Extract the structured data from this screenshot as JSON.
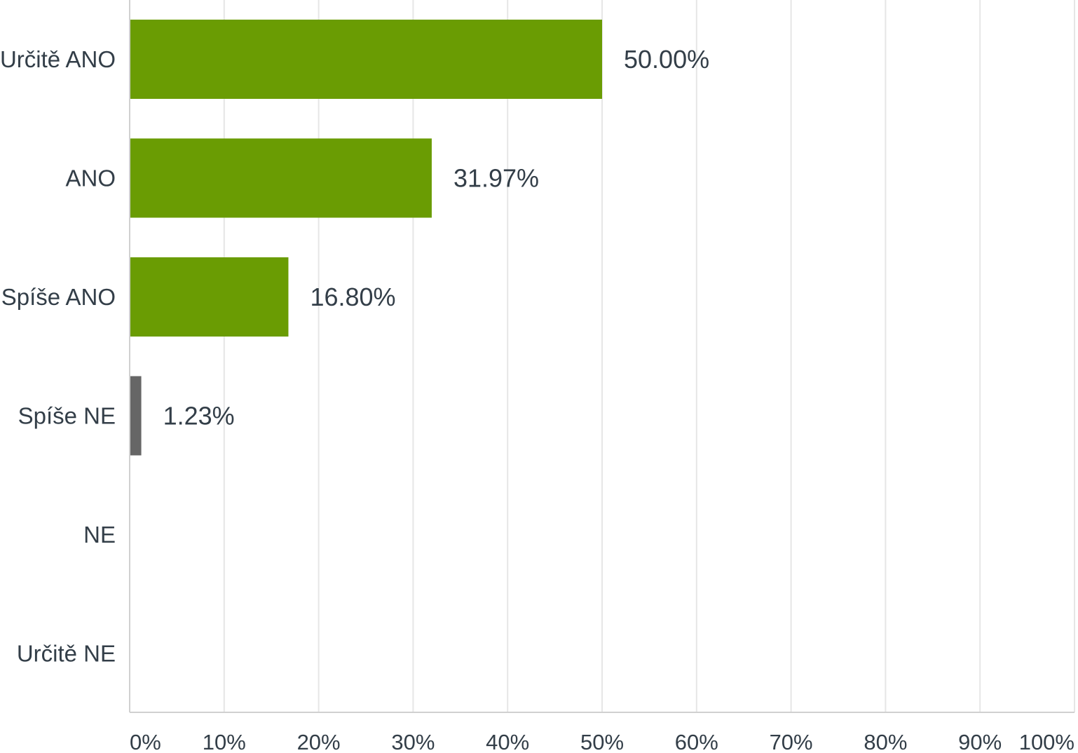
{
  "chart_data": {
    "type": "bar",
    "orientation": "horizontal",
    "categories": [
      "Určitě ANO",
      "ANO",
      "Spíše ANO",
      "Spíše NE",
      "NE",
      "Určitě NE"
    ],
    "values": [
      50.0,
      31.97,
      16.8,
      1.23,
      0,
      0
    ],
    "value_labels": [
      "50.00%",
      "31.97%",
      "16.80%",
      "1.23%",
      "",
      ""
    ],
    "xlim": [
      0,
      100
    ],
    "xticks": [
      0,
      10,
      20,
      30,
      40,
      50,
      60,
      70,
      80,
      90,
      100
    ],
    "xtick_labels": [
      "0%",
      "10%",
      "20%",
      "30%",
      "40%",
      "50%",
      "60%",
      "70%",
      "80%",
      "90%",
      "100%"
    ],
    "grid": "vertical",
    "bar_colors": [
      "#6a9c03",
      "#6a9c03",
      "#6a9c03",
      "#666666",
      "#666666",
      "#666666"
    ],
    "gridline_color": "#e6e6e6",
    "axis_color": "#d0d0d0",
    "text_color": "#333e48"
  }
}
